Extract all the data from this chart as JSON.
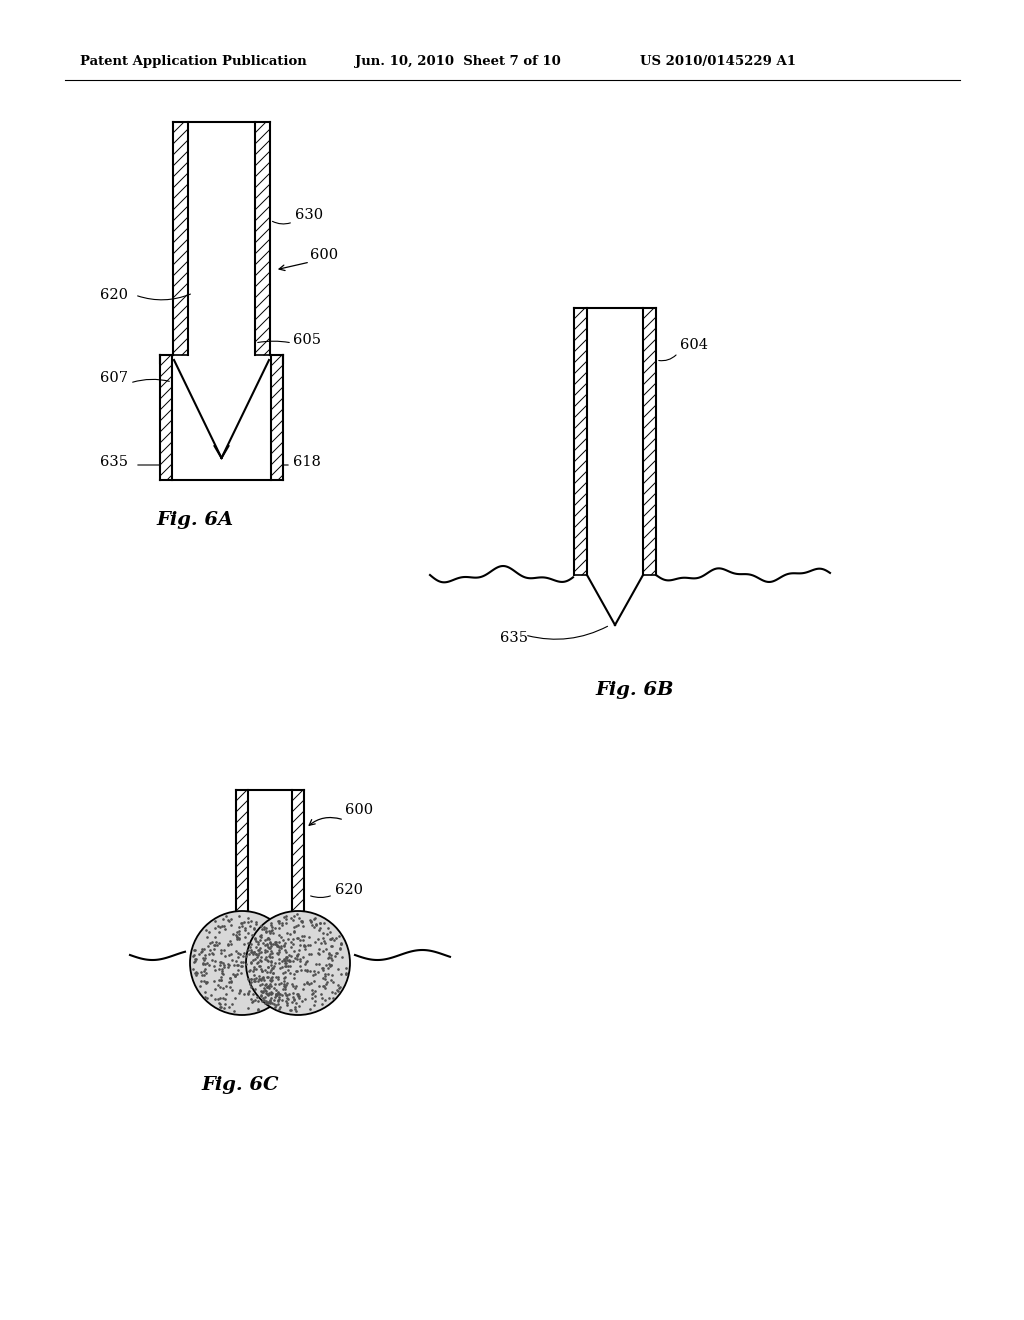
{
  "background_color": "#ffffff",
  "header_left": "Patent Application Publication",
  "header_center": "Jun. 10, 2010  Sheet 7 of 10",
  "header_right": "US 2010/0145229 A1",
  "fig6A_label": "Fig. 6A",
  "fig6B_label": "Fig. 6B",
  "fig6C_label": "Fig. 6C",
  "line_color": "#000000"
}
